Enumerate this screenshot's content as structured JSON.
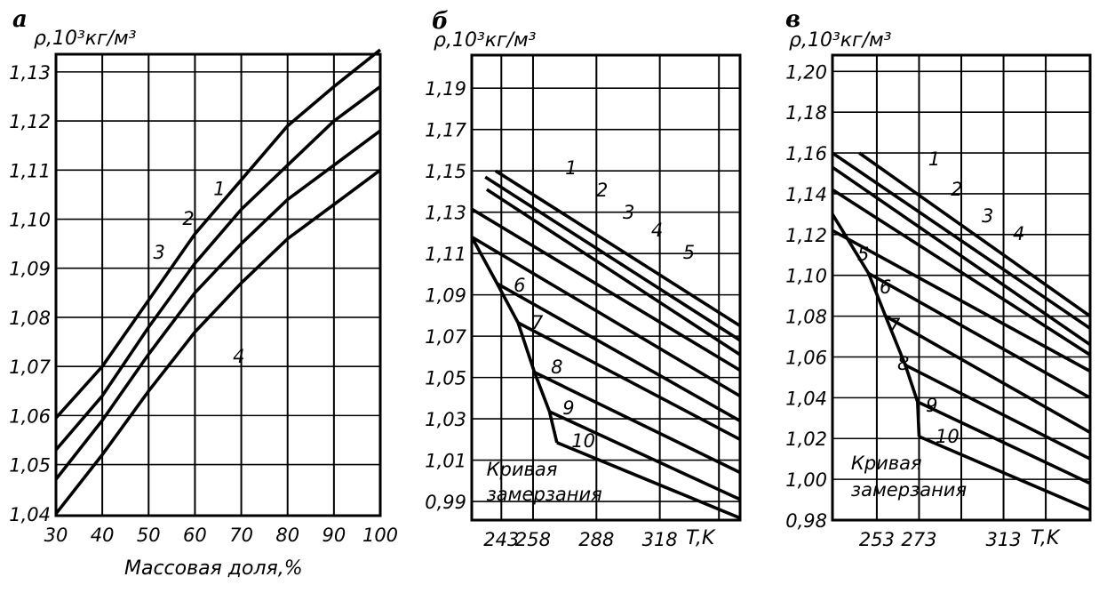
{
  "chart_data": [
    {
      "type": "line",
      "panel_label": "а",
      "ylabel": "ρ,10³кг/м³",
      "xlabel": "Массовая доля,%",
      "xlim": [
        30,
        100
      ],
      "ylim": [
        1.0396,
        1.1336
      ],
      "grid": true,
      "x_ticks": [
        30,
        40,
        50,
        60,
        70,
        80,
        90,
        100
      ],
      "x_tick_labels": [
        "30",
        "40",
        "50",
        "60",
        "70",
        "80",
        "90",
        "100"
      ],
      "y_ticks": [
        1.04,
        1.05,
        1.06,
        1.07,
        1.08,
        1.09,
        1.1,
        1.11,
        1.12,
        1.13
      ],
      "y_tick_labels": [
        "1,04",
        "1,05",
        "1,06",
        "1,07",
        "1,08",
        "1,09",
        "1,10",
        "1,11",
        "1,12",
        "1,13"
      ],
      "grid_x": [
        40,
        50,
        60,
        70,
        80,
        90
      ],
      "grid_y": [
        1.05,
        1.06,
        1.07,
        1.08,
        1.09,
        1.1,
        1.11,
        1.12,
        1.13
      ],
      "series": [
        {
          "name": "1",
          "points": [
            [
              30,
              1.0595
            ],
            [
              40,
              1.07
            ],
            [
              50,
              1.0835
            ],
            [
              60,
              1.097
            ],
            [
              70,
              1.108
            ],
            [
              80,
              1.119
            ],
            [
              90,
              1.127
            ],
            [
              100,
              1.1345
            ]
          ]
        },
        {
          "name": "2",
          "points": [
            [
              30,
              1.053
            ],
            [
              40,
              1.064
            ],
            [
              50,
              1.078
            ],
            [
              60,
              1.091
            ],
            [
              70,
              1.102
            ],
            [
              80,
              1.111
            ],
            [
              90,
              1.12
            ],
            [
              100,
              1.127
            ]
          ]
        },
        {
          "name": "3",
          "points": [
            [
              30,
              1.047
            ],
            [
              40,
              1.059
            ],
            [
              50,
              1.0725
            ],
            [
              60,
              1.085
            ],
            [
              70,
              1.095
            ],
            [
              80,
              1.104
            ],
            [
              90,
              1.111
            ],
            [
              100,
              1.118
            ]
          ]
        },
        {
          "name": "4",
          "points": [
            [
              30,
              1.04
            ],
            [
              40,
              1.052
            ],
            [
              50,
              1.065
            ],
            [
              60,
              1.077
            ],
            [
              70,
              1.087
            ],
            [
              80,
              1.096
            ],
            [
              90,
              1.103
            ],
            [
              100,
              1.11
            ]
          ]
        }
      ],
      "annotations": [
        {
          "text": "1",
          "x": 64,
          "y": 1.1063
        },
        {
          "text": "2",
          "x": 57.3,
          "y": 1.1003
        },
        {
          "text": "3",
          "x": 51,
          "y": 1.0934
        },
        {
          "text": "4",
          "x": 68.2,
          "y": 1.0722
        }
      ]
    },
    {
      "type": "line",
      "panel_label": "б",
      "ylabel": "ρ,10³кг/м³",
      "xlabel": "T,K",
      "xlim": [
        229,
        356
      ],
      "ylim": [
        0.981,
        1.206
      ],
      "grid": true,
      "x_ticks": [
        243,
        258,
        288,
        318
      ],
      "x_tick_labels": [
        "243",
        "258",
        "288",
        "318"
      ],
      "y_ticks": [
        0.99,
        1.01,
        1.03,
        1.05,
        1.07,
        1.09,
        1.11,
        1.13,
        1.15,
        1.17,
        1.19
      ],
      "y_tick_labels": [
        "0,99",
        "1,01",
        "1,03",
        "1,05",
        "1,07",
        "1,09",
        "1,11",
        "1,13",
        "1,15",
        "1,17",
        "1,19"
      ],
      "grid_x": [
        243,
        258,
        288,
        318,
        346
      ],
      "grid_y": [
        0.99,
        1.01,
        1.03,
        1.05,
        1.07,
        1.09,
        1.11,
        1.13,
        1.15,
        1.17,
        1.19
      ],
      "series": [
        {
          "name": "1",
          "points": [
            [
              240.3,
              1.15
            ],
            [
              356,
              1.075
            ]
          ]
        },
        {
          "name": "2",
          "points": [
            [
              235.4,
              1.147
            ],
            [
              356,
              1.068
            ]
          ]
        },
        {
          "name": "3",
          "points": [
            [
              236.1,
              1.141
            ],
            [
              356,
              1.061
            ]
          ]
        },
        {
          "name": "4",
          "points": [
            [
              229,
              1.1315
            ],
            [
              356,
              1.0535
            ]
          ]
        },
        {
          "name": "5",
          "points": [
            [
              229,
              1.118
            ],
            [
              356,
              1.041
            ]
          ]
        },
        {
          "name": "6",
          "points": [
            [
              241,
              1.0955
            ],
            [
              356,
              1.029
            ]
          ]
        },
        {
          "name": "7",
          "points": [
            [
              250.9,
              1.0765
            ],
            [
              356,
              1.02
            ]
          ]
        },
        {
          "name": "8",
          "points": [
            [
              258.7,
              1.0525
            ],
            [
              356,
              1.004
            ]
          ]
        },
        {
          "name": "9",
          "points": [
            [
              265.8,
              1.0335
            ],
            [
              356,
              0.991
            ]
          ]
        },
        {
          "name": "10",
          "points": [
            [
              269.3,
              1.0185
            ],
            [
              356,
              0.982
            ]
          ]
        },
        {
          "name": "Кривая замерзания",
          "points": [
            [
              229,
              1.118
            ],
            [
              241,
              1.0955
            ],
            [
              250.9,
              1.0765
            ],
            [
              258.7,
              1.0525
            ],
            [
              265.8,
              1.0335
            ],
            [
              269.3,
              1.0185
            ]
          ]
        }
      ],
      "annotations": [
        {
          "text": "1",
          "x": 273.2,
          "y": 1.1518
        },
        {
          "text": "2",
          "x": 287.9,
          "y": 1.141
        },
        {
          "text": "3",
          "x": 300.5,
          "y": 1.1303
        },
        {
          "text": "4",
          "x": 313.9,
          "y": 1.1217
        },
        {
          "text": "5",
          "x": 329,
          "y": 1.111
        },
        {
          "text": "6",
          "x": 248.8,
          "y": 1.0951
        },
        {
          "text": "7",
          "x": 257.2,
          "y": 1.077
        },
        {
          "text": "8",
          "x": 266.5,
          "y": 1.0555
        },
        {
          "text": "9",
          "x": 272,
          "y": 1.0357
        },
        {
          "text": "10",
          "x": 276.2,
          "y": 1.0198
        },
        {
          "text": "Кривая",
          "x": 236,
          "y": 1.006
        },
        {
          "text": "замерзания",
          "x": 236,
          "y": 0.994
        }
      ]
    },
    {
      "type": "line",
      "panel_label": "в",
      "ylabel": "ρ,10³кг/м³",
      "xlabel": "T,K",
      "xlim": [
        232,
        354
      ],
      "ylim": [
        0.98,
        1.208
      ],
      "grid": true,
      "x_ticks": [
        253,
        273,
        313
      ],
      "x_tick_labels": [
        "253",
        "273",
        "313"
      ],
      "y_ticks": [
        0.98,
        1.0,
        1.02,
        1.04,
        1.06,
        1.08,
        1.1,
        1.12,
        1.14,
        1.16,
        1.18,
        1.2
      ],
      "y_tick_labels": [
        "0,98",
        "1,00",
        "1,02",
        "1,04",
        "1,06",
        "1,08",
        "1,10",
        "1,12",
        "1,14",
        "1,16",
        "1,18",
        "1,20"
      ],
      "grid_x": [
        253,
        273,
        293,
        313,
        333
      ],
      "grid_y": [
        1.0,
        1.02,
        1.04,
        1.06,
        1.08,
        1.1,
        1.12,
        1.14,
        1.16,
        1.18,
        1.2
      ],
      "series": [
        {
          "name": "1",
          "points": [
            [
              244.7,
              1.16
            ],
            [
              354,
              1.08
            ]
          ]
        },
        {
          "name": "2",
          "points": [
            [
              232,
              1.16
            ],
            [
              354,
              1.074
            ]
          ]
        },
        {
          "name": "3",
          "points": [
            [
              232,
              1.153
            ],
            [
              354,
              1.066
            ]
          ]
        },
        {
          "name": "4",
          "points": [
            [
              232,
              1.142
            ],
            [
              354,
              1.061
            ]
          ]
        },
        {
          "name": "5",
          "points": [
            [
              232,
              1.122
            ],
            [
              354,
              1.053
            ]
          ]
        },
        {
          "name": "6",
          "points": [
            [
              249.1,
              1.101
            ],
            [
              354,
              1.04
            ]
          ]
        },
        {
          "name": "7",
          "points": [
            [
              257.1,
              1.08
            ],
            [
              354,
              1.023
            ]
          ]
        },
        {
          "name": "8",
          "points": [
            [
              266.5,
              1.056
            ],
            [
              354,
              1.01
            ]
          ]
        },
        {
          "name": "9",
          "points": [
            [
              272.3,
              1.038
            ],
            [
              354,
              0.998
            ]
          ]
        },
        {
          "name": "10",
          "points": [
            [
              273,
              1.021
            ],
            [
              354,
              0.985
            ]
          ]
        },
        {
          "name": "Кривая замерзания",
          "points": [
            [
              232,
              1.13
            ],
            [
              249.1,
              1.101
            ],
            [
              257.1,
              1.08
            ],
            [
              266.5,
              1.056
            ],
            [
              272.3,
              1.038
            ],
            [
              273,
              1.021
            ]
          ]
        }
      ],
      "annotations": [
        {
          "text": "1",
          "x": 277.4,
          "y": 1.1574
        },
        {
          "text": "2",
          "x": 288,
          "y": 1.1426
        },
        {
          "text": "3",
          "x": 302.7,
          "y": 1.1295
        },
        {
          "text": "4",
          "x": 317.4,
          "y": 1.1208
        },
        {
          "text": "5",
          "x": 243.8,
          "y": 1.1108
        },
        {
          "text": "6",
          "x": 254.3,
          "y": 1.0946
        },
        {
          "text": "7",
          "x": 258.5,
          "y": 1.0759
        },
        {
          "text": "8",
          "x": 262.7,
          "y": 1.0571
        },
        {
          "text": "9",
          "x": 276.2,
          "y": 1.0367
        },
        {
          "text": "10",
          "x": 280.8,
          "y": 1.0214
        },
        {
          "text": "Кривая",
          "x": 240.8,
          "y": 1.0083
        },
        {
          "text": "замерзания",
          "x": 240.8,
          "y": 0.9953
        }
      ]
    }
  ]
}
